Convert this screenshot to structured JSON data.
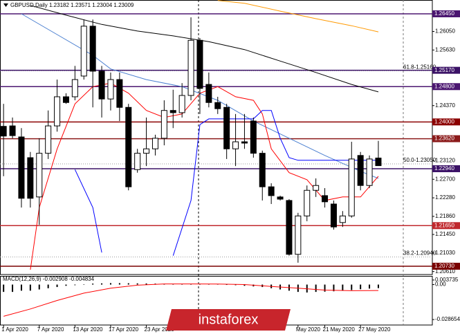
{
  "chart_data": [
    {
      "type": "candlestick",
      "title": "GBPUSD,Daily  1.23182 1.23571 1.23004 1.23009",
      "watermark": "instaforex",
      "xlim": [
        -0.4,
        48.05
      ],
      "ylim": [
        1.20542,
        1.26763
      ],
      "open": [
        1.239,
        1.2391,
        1.2366,
        1.2319,
        1.223,
        1.2329,
        1.2391,
        1.2457,
        1.2457,
        1.2504,
        1.2617,
        1.2515,
        1.2452,
        1.2496,
        1.2433,
        1.2292,
        1.2329,
        1.2339,
        1.2363,
        1.2426,
        1.2421,
        1.246,
        1.2585,
        1.2485,
        1.2444,
        1.2433,
        1.2339,
        1.2355,
        1.2402,
        1.2329,
        1.2253,
        1.223,
        1.2222,
        1.21,
        1.2187,
        1.2245,
        1.2233,
        1.2214,
        1.2172,
        1.2187,
        1.2324,
        1.2256,
        1.23182
      ],
      "high": [
        1.2441,
        1.241,
        1.2386,
        1.2332,
        1.2363,
        1.2426,
        1.2496,
        1.2465,
        1.2527,
        1.2632,
        1.2632,
        1.2527,
        1.2512,
        1.2512,
        1.2441,
        1.2339,
        1.241,
        1.2371,
        1.2449,
        1.2473,
        1.2488,
        1.2637,
        1.259,
        1.2512,
        1.2457,
        1.2441,
        1.2418,
        1.2418,
        1.241,
        1.2335,
        1.2261,
        1.2233,
        1.2225,
        1.2194,
        1.2256,
        1.2272,
        1.225,
        1.2222,
        1.2198,
        1.2355,
        1.2332,
        1.2324,
        1.23571
      ],
      "low": [
        1.2277,
        1.2363,
        1.2206,
        1.2206,
        1.2167,
        1.2316,
        1.2378,
        1.2441,
        1.2449,
        1.2496,
        1.2433,
        1.241,
        1.2426,
        1.2402,
        1.2245,
        1.2285,
        1.23,
        1.2324,
        1.2347,
        1.2386,
        1.241,
        1.2449,
        1.2418,
        1.2433,
        1.2418,
        1.2316,
        1.23,
        1.2339,
        1.2319,
        1.2222,
        1.2214,
        1.2222,
        1.2097,
        1.2081,
        1.2175,
        1.223,
        1.2206,
        1.2156,
        1.2162,
        1.2183,
        1.2245,
        1.225,
        1.23004
      ],
      "close": [
        1.2368,
        1.2369,
        1.2227,
        1.2227,
        1.2329,
        1.2391,
        1.2457,
        1.2444,
        1.2496,
        1.2617,
        1.2515,
        1.2452,
        1.2496,
        1.2433,
        1.2253,
        1.2329,
        1.2339,
        1.2363,
        1.2426,
        1.2421,
        1.246,
        1.2585,
        1.2476,
        1.2444,
        1.243,
        1.2339,
        1.2355,
        1.2352,
        1.2329,
        1.2253,
        1.2233,
        1.2225,
        1.21,
        1.2187,
        1.2245,
        1.2256,
        1.2219,
        1.2162,
        1.2187,
        1.2316,
        1.2256,
        1.2316,
        1.23009
      ],
      "up_color": "#ffffff",
      "down_color": "#000000",
      "lines": [
        {
          "color": "#000000",
          "x": [
            3,
            7,
            11,
            15,
            19,
            23,
            27,
            31,
            35,
            39,
            42
          ],
          "values": [
            1.2664,
            1.2642,
            1.2621,
            1.2606,
            1.2595,
            1.2582,
            1.2564,
            1.2538,
            1.2512,
            1.2485,
            1.2468
          ]
        },
        {
          "color": "#ff9900",
          "x": [
            24,
            27,
            31,
            35,
            39,
            42
          ],
          "values": [
            1.2675,
            1.2669,
            1.2651,
            1.2634,
            1.2618,
            1.2604
          ]
        },
        {
          "color": "#4a7fd0",
          "x": [
            2,
            6,
            10,
            12,
            16,
            20,
            24,
            28,
            32,
            36,
            40,
            42
          ],
          "values": [
            1.2645,
            1.2598,
            1.2551,
            1.252,
            1.2496,
            1.248,
            1.2449,
            1.2402,
            1.2363,
            1.2324,
            1.2288,
            1.2272
          ]
        },
        {
          "color": "#ff0000",
          "x": [
            3,
            4,
            6,
            8,
            10,
            12,
            14,
            16,
            18,
            20,
            22,
            24,
            26,
            28,
            29,
            30,
            32,
            34,
            36,
            38,
            40,
            42
          ],
          "values": [
            1.2065,
            1.2206,
            1.2339,
            1.2441,
            1.248,
            1.2488,
            1.2465,
            1.2426,
            1.241,
            1.2418,
            1.2465,
            1.248,
            1.2457,
            1.2449,
            1.2418,
            1.2339,
            1.2285,
            1.2269,
            1.2222,
            1.223,
            1.223,
            1.2277
          ]
        },
        {
          "color": "#0000ff",
          "x": [
            8,
            10,
            11,
            15,
            19,
            21,
            22,
            23,
            28,
            29,
            30,
            31,
            32,
            33,
            36,
            42
          ],
          "values": [
            1.2292,
            1.2206,
            1.2104,
            null,
            1.2097,
            1.2222,
            1.2394,
            1.2407,
            1.2407,
            1.2426,
            1.2426,
            1.2363,
            1.2319,
            1.2313,
            1.2313,
            1.2313
          ]
        }
      ],
      "levels": [
        {
          "value": 1.2645,
          "label": "1.26450",
          "color": "#4b1670"
        },
        {
          "value": 1.2517,
          "label": "1.25170",
          "color": "#3b1266"
        },
        {
          "value": 1.248,
          "label": "1.24800",
          "color": "#4b1670"
        },
        {
          "value": 1.24,
          "label": "1.24000",
          "color": "#8b0000"
        },
        {
          "value": 1.2362,
          "label": "1.23620",
          "color": "#8b1a1a"
        },
        {
          "value": 1.2294,
          "label": "1.22940",
          "color": "#3b1266"
        },
        {
          "value": 1.2165,
          "label": "1.21650",
          "color": "#c0282d"
        },
        {
          "value": 1.2073,
          "label": "1.20730",
          "color": "#7a0000"
        }
      ],
      "fib_levels": [
        {
          "value": 1.2516,
          "label": "61.8-1.25160"
        },
        {
          "value": 1.2305,
          "label": "50.0-1.23050"
        },
        {
          "value": 1.2094,
          "label": "38.2-1.20940"
        }
      ],
      "yticks": [
        {
          "value": 1.2605,
          "label": "1.26050"
        },
        {
          "value": 1.2563,
          "label": "1.25630"
        },
        {
          "value": 1.2437,
          "label": "1.24370"
        },
        {
          "value": 1.2312,
          "label": "1.23120"
        },
        {
          "value": 1.227,
          "label": "1.22700"
        },
        {
          "value": 1.2228,
          "label": "1.22280"
        },
        {
          "value": 1.2186,
          "label": "1.21860"
        },
        {
          "value": 1.2145,
          "label": "1.21450"
        },
        {
          "value": 1.2103,
          "label": "1.21030"
        },
        {
          "value": 1.2061,
          "label": "1.20610"
        }
      ]
    },
    {
      "type": "macd",
      "title": "MACD(12,26,9) -0.002908 -0.004834",
      "xlim": [
        -0.4,
        48.05
      ],
      "ylim": [
        -0.03312,
        0.00653
      ],
      "yticks": [
        0.003735,
        {
          "value": 0,
          "label": "0.00"
        },
        -0.028654
      ],
      "xticks": [
        {
          "value": 0,
          "label": "1 Apr 2020"
        },
        {
          "value": 4,
          "label": "7 Apr 2020"
        },
        {
          "value": 8,
          "label": "13 Apr 2020"
        },
        {
          "value": 12,
          "label": "17 Apr 2020"
        },
        {
          "value": 16,
          "label": "23 Apr 2020"
        },
        {
          "value": 33,
          "label": "May 2020"
        },
        {
          "value": 36,
          "label": "21 May 2020"
        },
        {
          "value": 40,
          "label": "27 May 2020"
        }
      ],
      "histogram": {
        "color": "#000000",
        "values": [
          -0.006,
          -0.006,
          -0.005,
          -0.005,
          -0.004,
          -0.003,
          -0.002,
          -0.001,
          -0.0005,
          0.0003,
          0.0008,
          0.001,
          0.0012,
          0.0012,
          0.0011,
          0.001,
          0.0009,
          0.0008,
          0.0006,
          0.0005,
          0.0004,
          0.0003,
          0.0004,
          0.0005,
          0.0003,
          0,
          -0.0005,
          -0.001,
          -0.0015,
          -0.002,
          -0.003,
          -0.004,
          -0.005,
          -0.006,
          -0.0065,
          -0.006,
          -0.0058,
          -0.0055,
          -0.005,
          -0.0045,
          -0.0038,
          -0.0033,
          -0.002908
        ]
      },
      "signal": {
        "color": "#ff0000",
        "x": [
          0,
          3,
          6,
          9,
          12,
          15,
          18,
          21,
          24,
          27,
          30,
          33,
          36,
          39,
          42
        ],
        "values": [
          -0.026,
          -0.02,
          -0.013,
          -0.007,
          -0.003,
          -0.0005,
          0.0005,
          0.0005,
          0.0004,
          0,
          -0.0015,
          -0.003,
          -0.0045,
          -0.005,
          -0.004834
        ]
      }
    }
  ]
}
